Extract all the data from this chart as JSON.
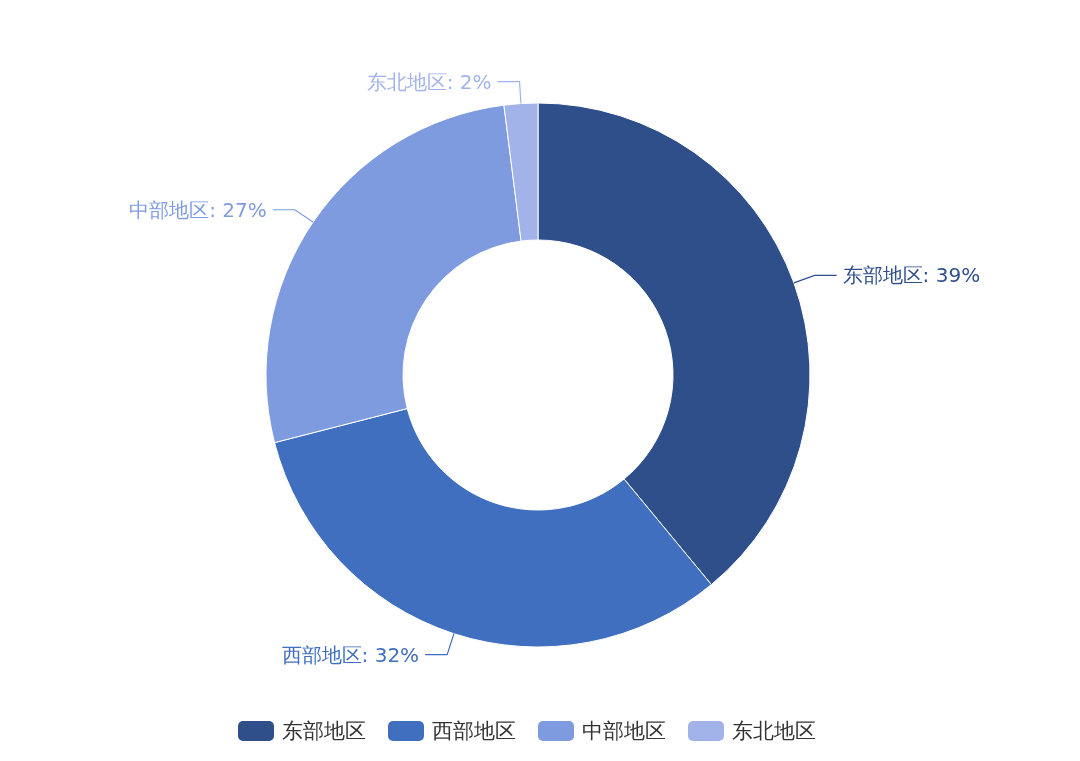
{
  "chart_data": {
    "type": "donut",
    "categories": [
      "东部地区",
      "西部地区",
      "中部地区",
      "东北地区"
    ],
    "values": [
      39,
      32,
      27,
      2
    ],
    "value_labels": [
      "东部地区: 39%",
      "西部地区: 32%",
      "中部地区: 27%",
      "东北地区: 2%"
    ],
    "colors": [
      "#2e4f8a",
      "#3f6fbe",
      "#7f9be0",
      "#a2b3ea"
    ],
    "legend": "bottom"
  }
}
